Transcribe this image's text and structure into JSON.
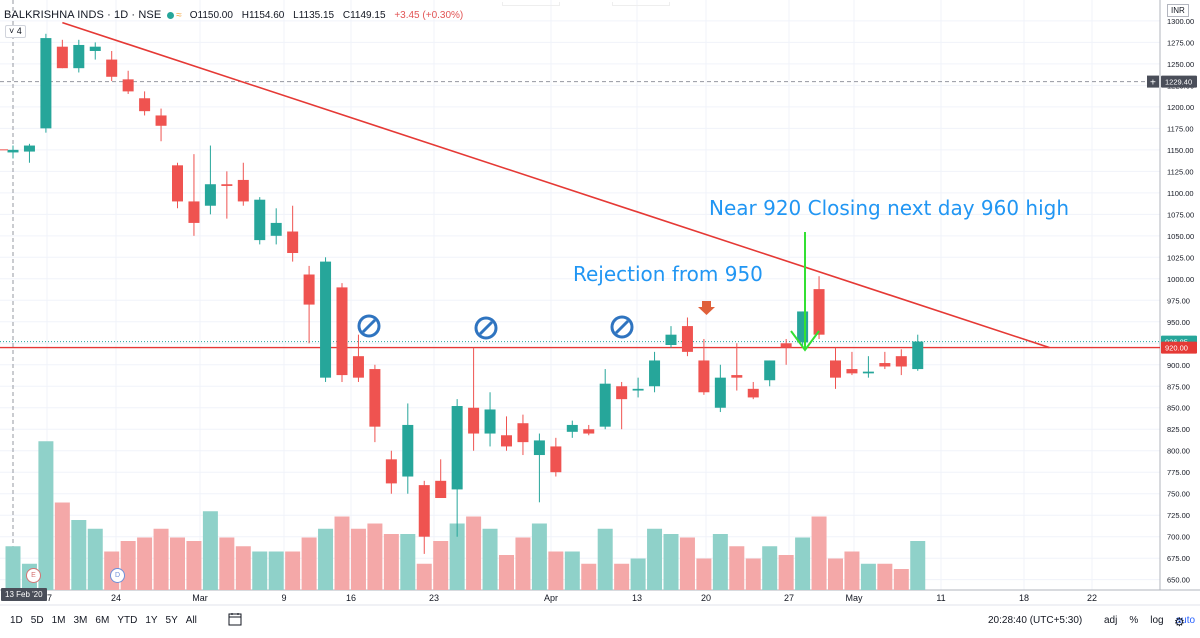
{
  "header": {
    "symbol": "BALKRISHNA INDS · 1D · NSE",
    "open": "O1150.00",
    "high": "H1154.60",
    "low": "L1135.15",
    "close": "C1149.15",
    "change": "+3.45 (+0.30%)",
    "indicator_count": "4",
    "currency": "INR"
  },
  "timeframes": [
    "1D",
    "5D",
    "1M",
    "3M",
    "6M",
    "YTD",
    "1Y",
    "5Y",
    "All"
  ],
  "footer": {
    "clock": "20:28:40 (UTC+5:30)",
    "adj": "adj",
    "percent": "%",
    "log": "log",
    "auto": "auto"
  },
  "date_badge": "13 Feb '20",
  "events": {
    "earnings": "E",
    "dividend": "D"
  },
  "chart_data": {
    "type": "candlestick",
    "y_axis_ticks": [
      1300,
      1275,
      1250,
      1225,
      1200,
      1175,
      1150,
      1125,
      1100,
      1075,
      1050,
      1025,
      1000,
      975,
      950,
      925,
      900,
      875,
      850,
      825,
      800,
      775,
      750,
      725,
      700,
      675,
      650
    ],
    "ylim": [
      638,
      1315
    ],
    "x_tick_labels": [
      "17",
      "24",
      "Mar",
      "9",
      "16",
      "23",
      "Apr",
      "13",
      "20",
      "27",
      "May",
      "11",
      "18",
      "22"
    ],
    "price_labels": {
      "crosshair": "1229.40",
      "last_price": "926.85",
      "horizontal_line": "920.00"
    },
    "horizontal_line": 920,
    "trendline": {
      "from": [
        3,
        1298
      ],
      "to": [
        63,
        920
      ]
    },
    "annotations": [
      {
        "text": "Near 920 Closing next day 960 high",
        "color": "#2196f3"
      },
      {
        "text": "Rejection from 950",
        "color": "#2196f3"
      }
    ],
    "candles": [
      {
        "o": 1147,
        "h": 1155,
        "l": 1140,
        "c": 1150
      },
      {
        "o": 1148,
        "h": 1157,
        "l": 1135,
        "c": 1155
      },
      {
        "o": 1175,
        "h": 1285,
        "l": 1170,
        "c": 1280
      },
      {
        "o": 1270,
        "h": 1278,
        "l": 1245,
        "c": 1245
      },
      {
        "o": 1245,
        "h": 1278,
        "l": 1240,
        "c": 1272
      },
      {
        "o": 1265,
        "h": 1275,
        "l": 1255,
        "c": 1270
      },
      {
        "o": 1255,
        "h": 1265,
        "l": 1230,
        "c": 1235
      },
      {
        "o": 1232,
        "h": 1242,
        "l": 1215,
        "c": 1218
      },
      {
        "o": 1210,
        "h": 1218,
        "l": 1190,
        "c": 1195
      },
      {
        "o": 1190,
        "h": 1198,
        "l": 1160,
        "c": 1178
      },
      {
        "o": 1132,
        "h": 1135,
        "l": 1082,
        "c": 1090
      },
      {
        "o": 1090,
        "h": 1145,
        "l": 1050,
        "c": 1065
      },
      {
        "o": 1085,
        "h": 1155,
        "l": 1075,
        "c": 1110
      },
      {
        "o": 1110,
        "h": 1125,
        "l": 1070,
        "c": 1108
      },
      {
        "o": 1115,
        "h": 1135,
        "l": 1085,
        "c": 1090
      },
      {
        "o": 1045,
        "h": 1095,
        "l": 1040,
        "c": 1092
      },
      {
        "o": 1050,
        "h": 1082,
        "l": 1040,
        "c": 1065
      },
      {
        "o": 1055,
        "h": 1085,
        "l": 1020,
        "c": 1030
      },
      {
        "o": 1005,
        "h": 1015,
        "l": 925,
        "c": 970
      },
      {
        "o": 885,
        "h": 1025,
        "l": 880,
        "c": 1020
      },
      {
        "o": 990,
        "h": 995,
        "l": 880,
        "c": 888
      },
      {
        "o": 910,
        "h": 935,
        "l": 880,
        "c": 885
      },
      {
        "o": 895,
        "h": 900,
        "l": 810,
        "c": 828
      },
      {
        "o": 790,
        "h": 800,
        "l": 750,
        "c": 762
      },
      {
        "o": 770,
        "h": 855,
        "l": 750,
        "c": 830
      },
      {
        "o": 760,
        "h": 765,
        "l": 680,
        "c": 700
      },
      {
        "o": 765,
        "h": 790,
        "l": 745,
        "c": 745
      },
      {
        "o": 755,
        "h": 860,
        "l": 700,
        "c": 852
      },
      {
        "o": 850,
        "h": 920,
        "l": 800,
        "c": 820
      },
      {
        "o": 820,
        "h": 868,
        "l": 805,
        "c": 848
      },
      {
        "o": 818,
        "h": 840,
        "l": 800,
        "c": 805
      },
      {
        "o": 832,
        "h": 842,
        "l": 795,
        "c": 810
      },
      {
        "o": 795,
        "h": 820,
        "l": 740,
        "c": 812
      },
      {
        "o": 805,
        "h": 815,
        "l": 770,
        "c": 775
      },
      {
        "o": 822,
        "h": 835,
        "l": 815,
        "c": 830
      },
      {
        "o": 825,
        "h": 830,
        "l": 818,
        "c": 820
      },
      {
        "o": 828,
        "h": 895,
        "l": 825,
        "c": 878
      },
      {
        "o": 875,
        "h": 880,
        "l": 825,
        "c": 860
      },
      {
        "o": 870,
        "h": 885,
        "l": 862,
        "c": 872
      },
      {
        "o": 875,
        "h": 915,
        "l": 868,
        "c": 905
      },
      {
        "o": 923,
        "h": 945,
        "l": 920,
        "c": 935
      },
      {
        "o": 945,
        "h": 955,
        "l": 910,
        "c": 915
      },
      {
        "o": 905,
        "h": 930,
        "l": 865,
        "c": 868
      },
      {
        "o": 850,
        "h": 900,
        "l": 845,
        "c": 885
      },
      {
        "o": 888,
        "h": 925,
        "l": 870,
        "c": 885
      },
      {
        "o": 872,
        "h": 880,
        "l": 860,
        "c": 862
      },
      {
        "o": 882,
        "h": 905,
        "l": 875,
        "c": 905
      },
      {
        "o": 925,
        "h": 930,
        "l": 900,
        "c": 920
      },
      {
        "o": 926,
        "h": 962,
        "l": 920,
        "c": 962
      },
      {
        "o": 988,
        "h": 1003,
        "l": 930,
        "c": 935
      },
      {
        "o": 905,
        "h": 920,
        "l": 872,
        "c": 885
      },
      {
        "o": 895,
        "h": 915,
        "l": 888,
        "c": 890
      },
      {
        "o": 890,
        "h": 910,
        "l": 885,
        "c": 892
      },
      {
        "o": 902,
        "h": 915,
        "l": 895,
        "c": 898
      },
      {
        "o": 910,
        "h": 918,
        "l": 888,
        "c": 898
      },
      {
        "o": 895,
        "h": 935,
        "l": 893,
        "c": 927
      }
    ],
    "volume_relative": [
      0.25,
      0.15,
      0.85,
      0.5,
      0.4,
      0.35,
      0.22,
      0.28,
      0.3,
      0.35,
      0.3,
      0.28,
      0.45,
      0.3,
      0.25,
      0.22,
      0.22,
      0.22,
      0.3,
      0.35,
      0.42,
      0.35,
      0.38,
      0.32,
      0.32,
      0.15,
      0.28,
      0.38,
      0.42,
      0.35,
      0.2,
      0.3,
      0.38,
      0.22,
      0.22,
      0.15,
      0.35,
      0.15,
      0.18,
      0.35,
      0.32,
      0.3,
      0.18,
      0.32,
      0.25,
      0.18,
      0.25,
      0.2,
      0.3,
      0.42,
      0.18,
      0.22,
      0.15,
      0.15,
      0.12,
      0.28
    ]
  }
}
